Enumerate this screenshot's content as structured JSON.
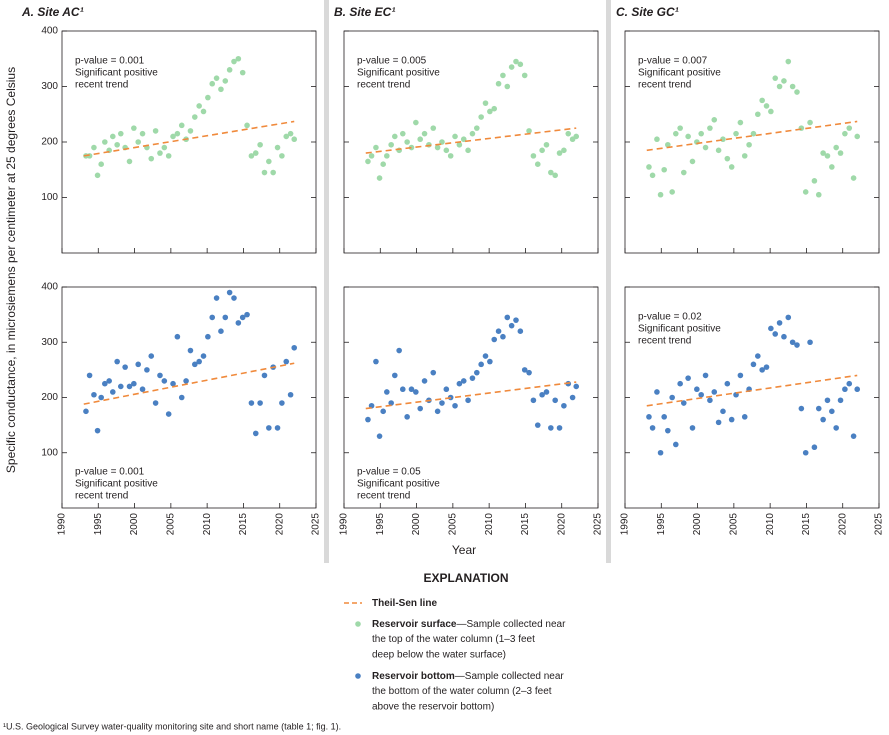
{
  "chart_data": [
    {
      "type": "scatter",
      "title": "A. Site AC¹",
      "xlim": [
        1990,
        2025
      ],
      "ylim": [
        0,
        400
      ],
      "xticks": [
        1990,
        1995,
        2000,
        2005,
        2010,
        2015,
        2020,
        2025
      ],
      "yticks": [
        100,
        200,
        300,
        400
      ],
      "annotation": [
        "p-value = 0.001",
        "Significant positive",
        "recent trend"
      ],
      "annotation_corner": "upper left",
      "series": [
        {
          "color": "#9fd9a9",
          "x": [
            1993.3,
            1993.8,
            1994.4,
            1994.9,
            1995.4,
            1995.9,
            1996.5,
            1997.0,
            1997.6,
            1998.1,
            1998.7,
            1999.3,
            1999.9,
            2000.5,
            2001.1,
            2001.7,
            2002.3,
            2002.9,
            2003.5,
            2004.1,
            2004.7,
            2005.3,
            2005.9,
            2006.5,
            2007.1,
            2007.7,
            2008.3,
            2008.9,
            2009.5,
            2010.1,
            2010.7,
            2011.3,
            2011.9,
            2012.5,
            2013.1,
            2013.7,
            2014.3,
            2014.9,
            2015.5,
            2016.1,
            2016.7,
            2017.3,
            2017.9,
            2018.5,
            2019.1,
            2019.7,
            2020.3,
            2020.9,
            2021.5,
            2022.0
          ],
          "values": [
            175,
            175,
            190,
            140,
            160,
            200,
            185,
            210,
            195,
            215,
            190,
            165,
            225,
            200,
            215,
            190,
            170,
            220,
            180,
            190,
            175,
            210,
            215,
            230,
            205,
            220,
            245,
            265,
            255,
            280,
            305,
            315,
            295,
            310,
            330,
            345,
            350,
            325,
            230,
            175,
            180,
            195,
            145,
            165,
            145,
            190,
            175,
            210,
            215,
            205
          ]
        },
        {
          "color": "#f08a3c",
          "dashed": true,
          "x": [
            1993,
            2022
          ],
          "values": [
            175,
            237
          ]
        }
      ]
    },
    {
      "type": "scatter",
      "title": "B. Site EC¹",
      "xlim": [
        1990,
        2025
      ],
      "ylim": [
        0,
        400
      ],
      "xticks": [
        1990,
        1995,
        2000,
        2005,
        2010,
        2015,
        2020,
        2025
      ],
      "yticks": [
        100,
        200,
        300,
        400
      ],
      "annotation": [
        "p-value = 0.005",
        "Significant positive",
        "recent trend"
      ],
      "annotation_corner": "upper left",
      "series": [
        {
          "color": "#9fd9a9",
          "x": [
            1993.3,
            1993.8,
            1994.4,
            1994.9,
            1995.4,
            1995.9,
            1996.5,
            1997.0,
            1997.6,
            1998.1,
            1998.7,
            1999.3,
            1999.9,
            2000.5,
            2001.1,
            2001.7,
            2002.3,
            2002.9,
            2003.5,
            2004.1,
            2004.7,
            2005.3,
            2005.9,
            2006.5,
            2007.1,
            2007.7,
            2008.3,
            2008.9,
            2009.5,
            2010.1,
            2010.7,
            2011.3,
            2011.9,
            2012.5,
            2013.1,
            2013.7,
            2014.3,
            2014.9,
            2015.5,
            2016.1,
            2016.7,
            2017.3,
            2017.9,
            2018.5,
            2019.1,
            2019.7,
            2020.3,
            2020.9,
            2021.5,
            2022.0
          ],
          "values": [
            165,
            175,
            190,
            135,
            160,
            175,
            195,
            210,
            185,
            215,
            200,
            190,
            235,
            205,
            215,
            195,
            225,
            190,
            200,
            185,
            175,
            210,
            195,
            205,
            185,
            215,
            225,
            245,
            270,
            255,
            260,
            305,
            320,
            300,
            335,
            345,
            340,
            320,
            220,
            175,
            160,
            185,
            195,
            145,
            140,
            180,
            185,
            215,
            205,
            210
          ]
        },
        {
          "color": "#f08a3c",
          "dashed": true,
          "x": [
            1993,
            2022
          ],
          "values": [
            180,
            225
          ]
        }
      ]
    },
    {
      "type": "scatter",
      "title": "C. Site GC¹",
      "xlim": [
        1990,
        2025
      ],
      "ylim": [
        0,
        400
      ],
      "xticks": [
        1990,
        1995,
        2000,
        2005,
        2010,
        2015,
        2020,
        2025
      ],
      "yticks": [
        100,
        200,
        300,
        400
      ],
      "annotation": [
        "p-value = 0.007",
        "Significant positive",
        "recent trend"
      ],
      "annotation_corner": "upper left",
      "series": [
        {
          "color": "#9fd9a9",
          "x": [
            1993.3,
            1993.8,
            1994.4,
            1994.9,
            1995.4,
            1995.9,
            1996.5,
            1997.0,
            1997.6,
            1998.1,
            1998.7,
            1999.3,
            1999.9,
            2000.5,
            2001.1,
            2001.7,
            2002.3,
            2002.9,
            2003.5,
            2004.1,
            2004.7,
            2005.3,
            2005.9,
            2006.5,
            2007.1,
            2007.7,
            2008.3,
            2008.9,
            2009.5,
            2010.1,
            2010.7,
            2011.3,
            2011.9,
            2012.5,
            2013.1,
            2013.7,
            2014.3,
            2014.9,
            2015.5,
            2016.1,
            2016.7,
            2017.3,
            2017.9,
            2018.5,
            2019.1,
            2019.7,
            2020.3,
            2020.9,
            2021.5,
            2022.0
          ],
          "values": [
            155,
            140,
            205,
            105,
            150,
            195,
            110,
            215,
            225,
            145,
            210,
            165,
            200,
            215,
            190,
            225,
            240,
            185,
            205,
            170,
            155,
            215,
            235,
            175,
            195,
            215,
            250,
            275,
            265,
            255,
            315,
            300,
            310,
            345,
            300,
            290,
            225,
            110,
            235,
            130,
            105,
            180,
            175,
            155,
            190,
            180,
            215,
            225,
            135,
            210
          ]
        },
        {
          "color": "#f08a3c",
          "dashed": true,
          "x": [
            1993,
            2022
          ],
          "values": [
            185,
            237
          ]
        }
      ]
    },
    {
      "type": "scatter",
      "xlim": [
        1990,
        2025
      ],
      "ylim": [
        0,
        400
      ],
      "xticks": [
        1990,
        1995,
        2000,
        2005,
        2010,
        2015,
        2020,
        2025
      ],
      "yticks": [
        100,
        200,
        300,
        400
      ],
      "annotation": [
        "p-value = 0.001",
        "Significant positive",
        "recent trend"
      ],
      "annotation_corner": "lower left",
      "series": [
        {
          "color": "#4a80c2",
          "x": [
            1993.3,
            1993.8,
            1994.4,
            1994.9,
            1995.4,
            1995.9,
            1996.5,
            1997.0,
            1997.6,
            1998.1,
            1998.7,
            1999.3,
            1999.9,
            2000.5,
            2001.1,
            2001.7,
            2002.3,
            2002.9,
            2003.5,
            2004.1,
            2004.7,
            2005.3,
            2005.9,
            2006.5,
            2007.1,
            2007.7,
            2008.3,
            2008.9,
            2009.5,
            2010.1,
            2010.7,
            2011.3,
            2011.9,
            2012.5,
            2013.1,
            2013.7,
            2014.3,
            2014.9,
            2015.5,
            2016.1,
            2016.7,
            2017.3,
            2017.9,
            2018.5,
            2019.1,
            2019.7,
            2020.3,
            2020.9,
            2021.5,
            2022.0
          ],
          "values": [
            175,
            240,
            205,
            140,
            200,
            225,
            230,
            210,
            265,
            220,
            255,
            220,
            225,
            260,
            215,
            250,
            275,
            190,
            240,
            230,
            170,
            225,
            310,
            200,
            230,
            285,
            260,
            265,
            275,
            310,
            345,
            380,
            320,
            345,
            390,
            380,
            335,
            345,
            350,
            190,
            135,
            190,
            240,
            145,
            255,
            145,
            190,
            265,
            205,
            290
          ]
        },
        {
          "color": "#f08a3c",
          "dashed": true,
          "x": [
            1993,
            2022
          ],
          "values": [
            188,
            262
          ]
        }
      ]
    },
    {
      "type": "scatter",
      "xlim": [
        1990,
        2025
      ],
      "ylim": [
        0,
        400
      ],
      "xticks": [
        1990,
        1995,
        2000,
        2005,
        2010,
        2015,
        2020,
        2025
      ],
      "yticks": [
        100,
        200,
        300,
        400
      ],
      "annotation": [
        "p-value = 0.05",
        "Significant positive",
        "recent trend"
      ],
      "annotation_corner": "lower left",
      "series": [
        {
          "color": "#4a80c2",
          "x": [
            1993.3,
            1993.8,
            1994.4,
            1994.9,
            1995.4,
            1995.9,
            1996.5,
            1997.0,
            1997.6,
            1998.1,
            1998.7,
            1999.3,
            1999.9,
            2000.5,
            2001.1,
            2001.7,
            2002.3,
            2002.9,
            2003.5,
            2004.1,
            2004.7,
            2005.3,
            2005.9,
            2006.5,
            2007.1,
            2007.7,
            2008.3,
            2008.9,
            2009.5,
            2010.1,
            2010.7,
            2011.3,
            2011.9,
            2012.5,
            2013.1,
            2013.7,
            2014.3,
            2014.9,
            2015.5,
            2016.1,
            2016.7,
            2017.3,
            2017.9,
            2018.5,
            2019.1,
            2019.7,
            2020.3,
            2020.9,
            2021.5,
            2022.0
          ],
          "values": [
            160,
            185,
            265,
            130,
            175,
            210,
            190,
            240,
            285,
            215,
            165,
            215,
            210,
            180,
            230,
            195,
            245,
            175,
            190,
            215,
            200,
            185,
            225,
            230,
            195,
            235,
            245,
            260,
            275,
            265,
            305,
            320,
            310,
            345,
            330,
            340,
            320,
            250,
            245,
            195,
            150,
            205,
            210,
            145,
            195,
            145,
            185,
            225,
            200,
            220
          ]
        },
        {
          "color": "#f08a3c",
          "dashed": true,
          "x": [
            1993,
            2022
          ],
          "values": [
            180,
            228
          ]
        }
      ]
    },
    {
      "type": "scatter",
      "xlim": [
        1990,
        2025
      ],
      "ylim": [
        0,
        400
      ],
      "xticks": [
        1990,
        1995,
        2000,
        2005,
        2010,
        2015,
        2020,
        2025
      ],
      "yticks": [
        100,
        200,
        300,
        400
      ],
      "annotation": [
        "p-value = 0.02",
        "Significant positive",
        "recent trend"
      ],
      "annotation_corner": "upper left",
      "series": [
        {
          "color": "#4a80c2",
          "x": [
            1993.3,
            1993.8,
            1994.4,
            1994.9,
            1995.4,
            1995.9,
            1996.5,
            1997.0,
            1997.6,
            1998.1,
            1998.7,
            1999.3,
            1999.9,
            2000.5,
            2001.1,
            2001.7,
            2002.3,
            2002.9,
            2003.5,
            2004.1,
            2004.7,
            2005.3,
            2005.9,
            2006.5,
            2007.1,
            2007.7,
            2008.3,
            2008.9,
            2009.5,
            2010.1,
            2010.7,
            2011.3,
            2011.9,
            2012.5,
            2013.1,
            2013.7,
            2014.3,
            2014.9,
            2015.5,
            2016.1,
            2016.7,
            2017.3,
            2017.9,
            2018.5,
            2019.1,
            2019.7,
            2020.3,
            2020.9,
            2021.5,
            2022.0
          ],
          "values": [
            165,
            145,
            210,
            100,
            165,
            140,
            200,
            115,
            225,
            190,
            235,
            145,
            215,
            205,
            240,
            195,
            210,
            155,
            175,
            225,
            160,
            205,
            240,
            165,
            215,
            260,
            275,
            250,
            255,
            325,
            315,
            335,
            310,
            345,
            300,
            295,
            180,
            100,
            300,
            110,
            180,
            160,
            195,
            175,
            145,
            195,
            215,
            225,
            130,
            215
          ]
        },
        {
          "color": "#f08a3c",
          "dashed": true,
          "x": [
            1993,
            2022
          ],
          "values": [
            185,
            240
          ]
        }
      ]
    }
  ],
  "ylabel": "Specific conductance, in microsiemens per centimeter at 25 degrees Celsius",
  "xlabel": "Year",
  "explanation": {
    "title": "EXPLANATION",
    "items": [
      {
        "name": "Theil-Sen line",
        "lines": []
      },
      {
        "name": "Reservoir surface",
        "lines": [
          "—Sample collected near",
          "the top of the water column (1–3 feet",
          "deep below the water surface)"
        ]
      },
      {
        "name": "Reservoir bottom",
        "lines": [
          "—Sample collected near",
          "the bottom of the water column (2–3 feet",
          "above the reservoir bottom)"
        ]
      }
    ]
  },
  "footnote": "¹U.S. Geological Survey water-quality monitoring site and short name (table 1; fig. 1)."
}
